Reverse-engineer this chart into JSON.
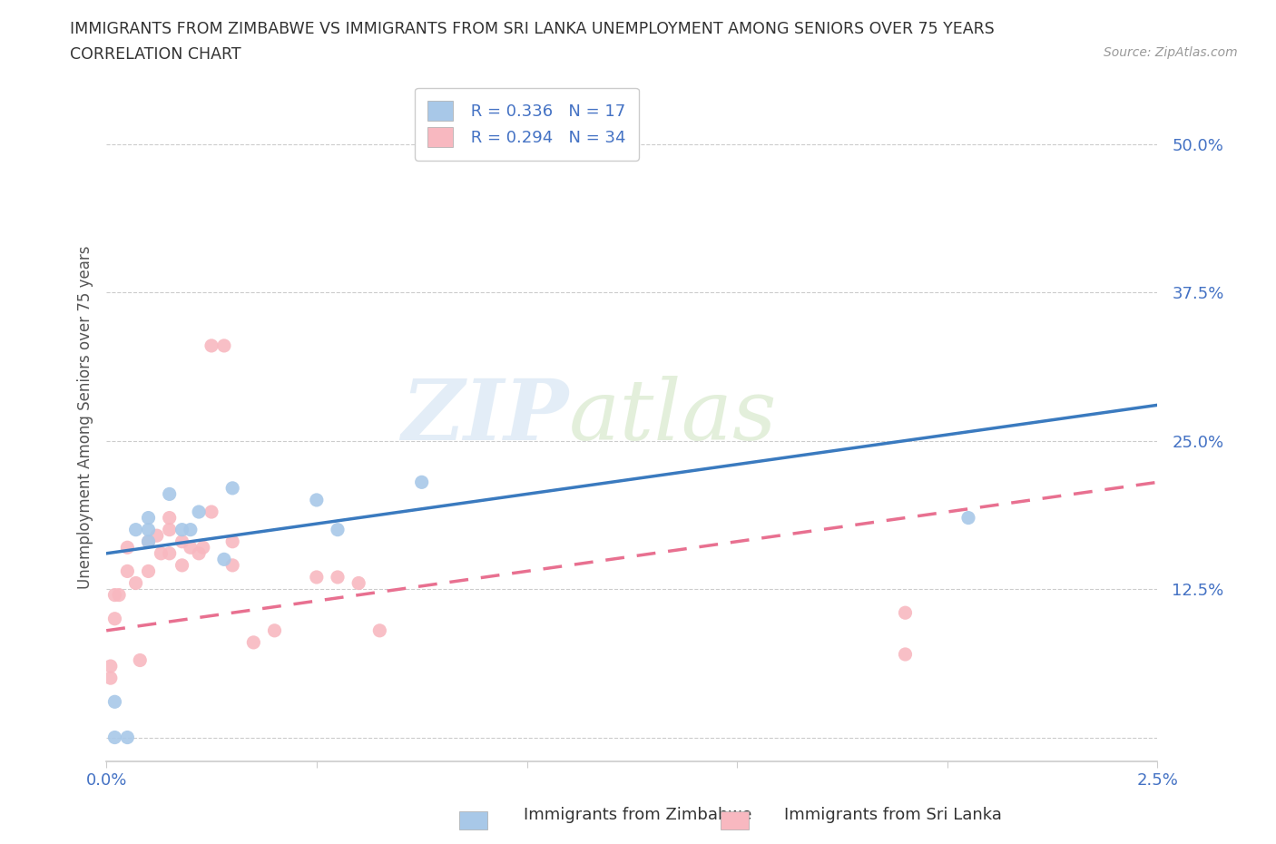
{
  "title_line1": "IMMIGRANTS FROM ZIMBABWE VS IMMIGRANTS FROM SRI LANKA UNEMPLOYMENT AMONG SENIORS OVER 75 YEARS",
  "title_line2": "CORRELATION CHART",
  "source": "Source: ZipAtlas.com",
  "ylabel": "Unemployment Among Seniors over 75 years",
  "xlim": [
    0.0,
    0.025
  ],
  "ylim": [
    -0.02,
    0.56
  ],
  "yticks": [
    0.0,
    0.125,
    0.25,
    0.375,
    0.5
  ],
  "ytick_labels": [
    "",
    "12.5%",
    "25.0%",
    "37.5%",
    "50.0%"
  ],
  "xticks": [
    0.0,
    0.005,
    0.01,
    0.015,
    0.02,
    0.025
  ],
  "xtick_labels": [
    "0.0%",
    "",
    "",
    "",
    "",
    "2.5%"
  ],
  "zimbabwe_color": "#a8c8e8",
  "sri_lanka_color": "#f8b8c0",
  "trend_zimbabwe_color": "#3a7abf",
  "trend_sri_lanka_color": "#e87090",
  "background_color": "#ffffff",
  "legend_r_zimbabwe": "R = 0.336",
  "legend_n_zimbabwe": "N = 17",
  "legend_r_sri_lanka": "R = 0.294",
  "legend_n_sri_lanka": "N = 34",
  "watermark_zip": "ZIP",
  "watermark_atlas": "atlas",
  "zimbabwe_x": [
    0.0002,
    0.0002,
    0.0005,
    0.0007,
    0.001,
    0.001,
    0.001,
    0.0015,
    0.0018,
    0.002,
    0.0022,
    0.0028,
    0.003,
    0.005,
    0.0055,
    0.0075,
    0.0205
  ],
  "zimbabwe_y": [
    0.0,
    0.03,
    0.0,
    0.175,
    0.165,
    0.175,
    0.185,
    0.205,
    0.175,
    0.175,
    0.19,
    0.15,
    0.21,
    0.2,
    0.175,
    0.215,
    0.185
  ],
  "sri_lanka_x": [
    0.0001,
    0.0001,
    0.0002,
    0.0002,
    0.0003,
    0.0005,
    0.0005,
    0.0007,
    0.0008,
    0.001,
    0.001,
    0.0012,
    0.0013,
    0.0015,
    0.0015,
    0.0015,
    0.0018,
    0.0018,
    0.002,
    0.0022,
    0.0023,
    0.0025,
    0.0025,
    0.0028,
    0.003,
    0.003,
    0.0035,
    0.004,
    0.005,
    0.0055,
    0.006,
    0.0065,
    0.019,
    0.019
  ],
  "sri_lanka_y": [
    0.05,
    0.06,
    0.1,
    0.12,
    0.12,
    0.14,
    0.16,
    0.13,
    0.065,
    0.14,
    0.165,
    0.17,
    0.155,
    0.155,
    0.175,
    0.185,
    0.145,
    0.165,
    0.16,
    0.155,
    0.16,
    0.19,
    0.33,
    0.33,
    0.145,
    0.165,
    0.08,
    0.09,
    0.135,
    0.135,
    0.13,
    0.09,
    0.105,
    0.07
  ],
  "trend_zim_x0": 0.0,
  "trend_zim_y0": 0.155,
  "trend_zim_x1": 0.025,
  "trend_zim_y1": 0.28,
  "trend_sri_x0": 0.0,
  "trend_sri_y0": 0.09,
  "trend_sri_x1": 0.025,
  "trend_sri_y1": 0.215
}
